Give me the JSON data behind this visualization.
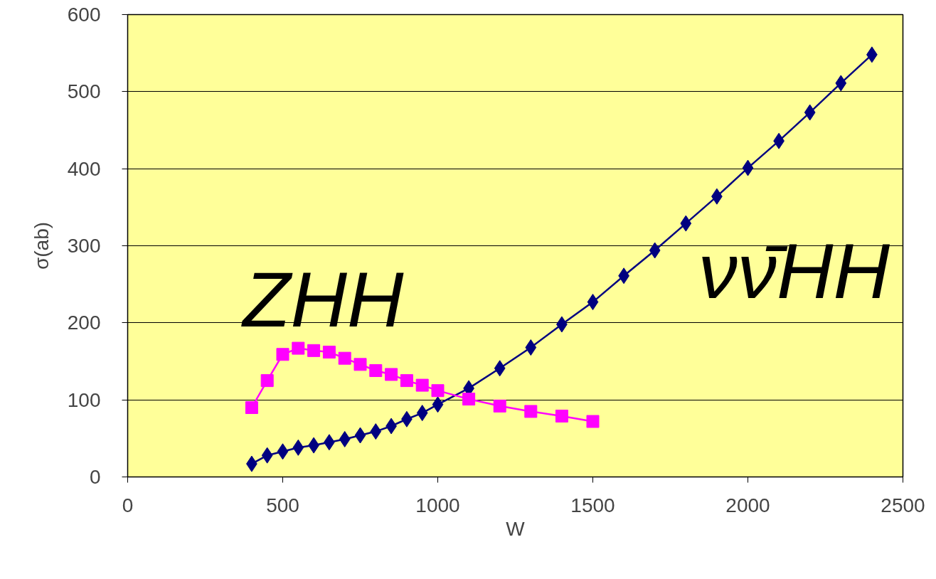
{
  "chart_data": {
    "type": "line",
    "xlabel": "W",
    "ylabel": "σ(ab)",
    "xlim": [
      0,
      2500
    ],
    "xticks": [
      0,
      500,
      1000,
      1500,
      2000,
      2500
    ],
    "ylim": [
      0,
      600
    ],
    "yticks": [
      0,
      100,
      200,
      300,
      400,
      500,
      600
    ],
    "grid": "y",
    "legend": false,
    "series": [
      {
        "name": "νν̄HH",
        "color": "#000080",
        "marker": "diamond",
        "x": [
          400,
          450,
          500,
          550,
          600,
          650,
          700,
          750,
          800,
          850,
          900,
          950,
          1000,
          1100,
          1200,
          1300,
          1400,
          1500,
          1600,
          1700,
          1800,
          1900,
          2000,
          2100,
          2200,
          2300,
          2400
        ],
        "values": [
          17,
          28,
          33,
          38,
          41,
          45,
          49,
          54,
          59,
          66,
          75,
          83,
          94,
          115,
          141,
          168,
          198,
          227,
          261,
          294,
          329,
          364,
          401,
          436,
          473,
          511,
          548
        ]
      },
      {
        "name": "ZHH",
        "color": "#ff00ff",
        "marker": "square",
        "x": [
          400,
          450,
          500,
          550,
          600,
          650,
          700,
          750,
          800,
          850,
          900,
          950,
          1000,
          1100,
          1200,
          1300,
          1400,
          1500
        ],
        "values": [
          90,
          125,
          159,
          167,
          164,
          162,
          154,
          146,
          138,
          133,
          125,
          119,
          112,
          101,
          92,
          85,
          79,
          72
        ]
      }
    ]
  }
}
